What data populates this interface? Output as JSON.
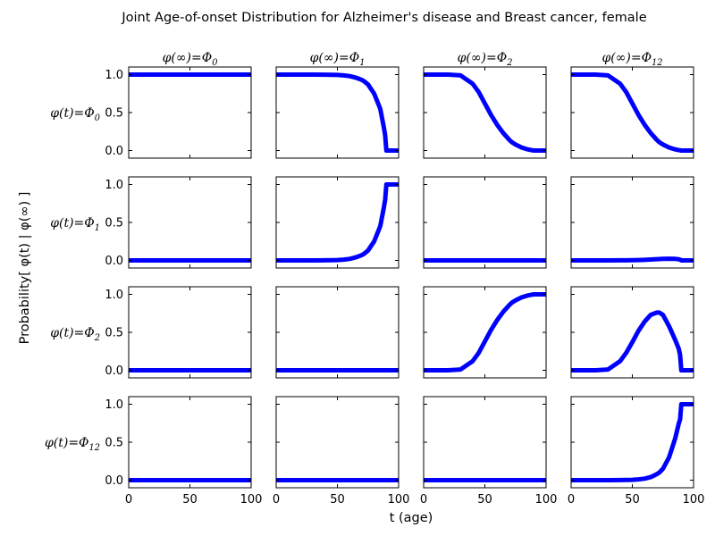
{
  "chart_data": {
    "type": "line",
    "title": "Joint Age-of-onset Distribution for Alzheimer's disease and Breast cancer, female",
    "xlabel": "t (age)",
    "ylabel": "Probability[ φ(t) | φ(∞) ]",
    "xlim": [
      0,
      100
    ],
    "ylim": [
      -0.1,
      1.1
    ],
    "x_ticks": [
      "0",
      "50",
      "100"
    ],
    "y_ticks": [
      "0.0",
      "0.5",
      "1.0"
    ],
    "grid": false,
    "line_color": "#0000ff",
    "column_labels": [
      "φ(∞)=Φ0",
      "φ(∞)=Φ1",
      "φ(∞)=Φ2",
      "φ(∞)=Φ12"
    ],
    "row_labels": [
      "φ(t)=Φ0",
      "φ(t)=Φ1",
      "φ(t)=Φ2",
      "φ(t)=Φ12"
    ],
    "x": [
      0,
      10,
      20,
      30,
      40,
      45,
      50,
      55,
      60,
      65,
      70,
      72,
      75,
      80,
      85,
      88,
      89,
      90,
      95,
      100
    ],
    "panels": [
      [
        {
          "row": 0,
          "col": 0,
          "y": [
            1,
            1,
            1,
            1,
            1,
            1,
            1,
            1,
            1,
            1,
            1,
            1,
            1,
            1,
            1,
            1,
            1,
            1,
            1,
            1
          ]
        },
        {
          "row": 0,
          "col": 1,
          "y": [
            1,
            1,
            1,
            1,
            0.999,
            0.997,
            0.995,
            0.99,
            0.98,
            0.96,
            0.93,
            0.91,
            0.87,
            0.75,
            0.55,
            0.3,
            0.2,
            0,
            0,
            0
          ]
        },
        {
          "row": 0,
          "col": 2,
          "y": [
            1,
            1,
            1,
            0.99,
            0.88,
            0.77,
            0.62,
            0.47,
            0.34,
            0.23,
            0.14,
            0.11,
            0.08,
            0.04,
            0.015,
            0.005,
            0.003,
            0,
            0,
            0
          ]
        },
        {
          "row": 0,
          "col": 3,
          "y": [
            1,
            1,
            1,
            0.99,
            0.88,
            0.77,
            0.62,
            0.47,
            0.34,
            0.23,
            0.14,
            0.11,
            0.08,
            0.04,
            0.015,
            0.005,
            0.003,
            0,
            0,
            0
          ]
        }
      ],
      [
        {
          "row": 1,
          "col": 0,
          "y": [
            0,
            0,
            0,
            0,
            0,
            0,
            0,
            0,
            0,
            0,
            0,
            0,
            0,
            0,
            0,
            0,
            0,
            0,
            0,
            0
          ]
        },
        {
          "row": 1,
          "col": 1,
          "y": [
            0,
            0,
            0,
            0,
            0.001,
            0.003,
            0.005,
            0.01,
            0.02,
            0.04,
            0.07,
            0.09,
            0.13,
            0.25,
            0.45,
            0.7,
            0.8,
            1,
            1,
            1
          ]
        },
        {
          "row": 1,
          "col": 2,
          "y": [
            0,
            0,
            0,
            0,
            0,
            0,
            0,
            0,
            0,
            0,
            0,
            0,
            0,
            0,
            0,
            0,
            0,
            0,
            0,
            0
          ]
        },
        {
          "row": 1,
          "col": 3,
          "y": [
            0,
            0,
            0,
            0,
            0.001,
            0.002,
            0.003,
            0.005,
            0.008,
            0.012,
            0.016,
            0.018,
            0.02,
            0.022,
            0.02,
            0.015,
            0.01,
            0,
            0,
            0
          ]
        }
      ],
      [
        {
          "row": 2,
          "col": 0,
          "y": [
            0,
            0,
            0,
            0,
            0,
            0,
            0,
            0,
            0,
            0,
            0,
            0,
            0,
            0,
            0,
            0,
            0,
            0,
            0,
            0
          ]
        },
        {
          "row": 2,
          "col": 1,
          "y": [
            0,
            0,
            0,
            0,
            0,
            0,
            0,
            0,
            0,
            0,
            0,
            0,
            0,
            0,
            0,
            0,
            0,
            0,
            0,
            0
          ]
        },
        {
          "row": 2,
          "col": 2,
          "y": [
            0,
            0,
            0,
            0.01,
            0.12,
            0.23,
            0.38,
            0.53,
            0.66,
            0.77,
            0.86,
            0.89,
            0.92,
            0.96,
            0.985,
            0.995,
            0.997,
            1,
            1,
            1
          ]
        },
        {
          "row": 2,
          "col": 3,
          "y": [
            0,
            0,
            0,
            0.01,
            0.12,
            0.23,
            0.37,
            0.52,
            0.64,
            0.73,
            0.76,
            0.76,
            0.73,
            0.58,
            0.4,
            0.28,
            0.2,
            0,
            0,
            0
          ]
        }
      ],
      [
        {
          "row": 3,
          "col": 0,
          "y": [
            0,
            0,
            0,
            0,
            0,
            0,
            0,
            0,
            0,
            0,
            0,
            0,
            0,
            0,
            0,
            0,
            0,
            0,
            0,
            0
          ]
        },
        {
          "row": 3,
          "col": 1,
          "y": [
            0,
            0,
            0,
            0,
            0,
            0,
            0,
            0,
            0,
            0,
            0,
            0,
            0,
            0,
            0,
            0,
            0,
            0,
            0,
            0
          ]
        },
        {
          "row": 3,
          "col": 2,
          "y": [
            0,
            0,
            0,
            0,
            0,
            0,
            0,
            0,
            0,
            0,
            0,
            0,
            0,
            0,
            0,
            0,
            0,
            0,
            0,
            0
          ]
        },
        {
          "row": 3,
          "col": 3,
          "y": [
            0,
            0,
            0,
            0,
            0.001,
            0.003,
            0.005,
            0.01,
            0.02,
            0.04,
            0.08,
            0.1,
            0.15,
            0.3,
            0.55,
            0.75,
            0.8,
            1,
            1,
            1
          ]
        }
      ]
    ]
  }
}
